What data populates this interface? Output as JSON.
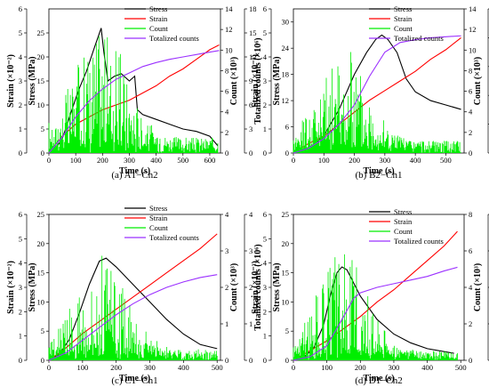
{
  "panels": [
    {
      "caption": "(a) A1−Ch2",
      "xlabel": "Time (s)",
      "y_labels": [
        "Strain (×10⁻²)",
        "Stress (MPa)",
        "Count (×10³)",
        "Totalized counts (×10⁶)"
      ],
      "x_ticks": [
        "0",
        "100",
        "200",
        "300",
        "400",
        "500",
        "600"
      ],
      "strain_ticks": [
        "0",
        "1",
        "2",
        "3",
        "4",
        "5",
        "6"
      ],
      "stress_ticks": [
        "0",
        "5",
        "10",
        "15",
        "20",
        "25"
      ],
      "count_ticks": [
        "0",
        "2",
        "4",
        "6",
        "8",
        "10",
        "12",
        "14"
      ],
      "total_ticks": [
        "0",
        "3",
        "6",
        "9",
        "12",
        "15",
        "18"
      ],
      "legend": [
        "Stress",
        "Strain",
        "Count",
        "Totalized counts"
      ]
    },
    {
      "caption": "(b) B2−Ch1",
      "xlabel": "Time (s)",
      "y_labels": [
        "Strain (×10⁻²)",
        "Stress (MPa)",
        "Count (×10³)",
        "Totalized counts (×10⁶)"
      ],
      "x_ticks": [
        "0",
        "100",
        "200",
        "300",
        "400",
        "500"
      ],
      "strain_ticks": [
        "0",
        "1",
        "2",
        "3",
        "4",
        "5",
        "6"
      ],
      "stress_ticks": [
        "0",
        "6",
        "12",
        "18",
        "24",
        "30"
      ],
      "count_ticks": [
        "0",
        "2",
        "4",
        "6",
        "8",
        "10",
        "12",
        "14"
      ],
      "total_ticks": [
        "0",
        "3",
        "6",
        "9",
        "12",
        "15"
      ],
      "legend": [
        "Stress",
        "Strain",
        "Count",
        "Totalized counts"
      ]
    },
    {
      "caption": "(c) C1−Ch1",
      "xlabel": "Time (s)",
      "y_labels": [
        "Strain (×10⁻²)",
        "Stress (MPa)",
        "Count (×10³)",
        "Totalized counts (×10⁶)"
      ],
      "x_ticks": [
        "0",
        "100",
        "200",
        "300",
        "400",
        "500"
      ],
      "strain_ticks": [
        "0",
        "1",
        "2",
        "3",
        "4",
        "5",
        "6"
      ],
      "stress_ticks": [
        "0",
        "5",
        "10",
        "15",
        "20",
        "25"
      ],
      "count_ticks": [
        "0",
        "1",
        "2",
        "3",
        "4"
      ],
      "total_ticks": [
        "0",
        "1",
        "2",
        "3",
        "4"
      ],
      "legend": [
        "Stress",
        "Strain",
        "Count",
        "Totalized counts"
      ]
    },
    {
      "caption": "(d) D1−Ch2",
      "xlabel": "Time (s)",
      "y_labels": [
        "Strain (×10⁻²)",
        "Stress (MPa)",
        "Count (×10³)",
        "Totalized counts (×10⁶)"
      ],
      "x_ticks": [
        "0",
        "100",
        "200",
        "300",
        "400",
        "500"
      ],
      "strain_ticks": [
        "0",
        "1",
        "2",
        "3",
        "4",
        "5",
        "6"
      ],
      "stress_ticks": [
        "0",
        "5",
        "10",
        "15",
        "20",
        "25"
      ],
      "count_ticks": [
        "0",
        "2",
        "4",
        "6",
        "8"
      ],
      "total_ticks": [
        "0",
        "1",
        "2",
        "3",
        "4"
      ],
      "legend": [
        "Stress",
        "Strain",
        "Count",
        "Totalized counts"
      ]
    }
  ],
  "colors": {
    "stress": "#000000",
    "strain": "#ff0000",
    "count": "#00ee00",
    "total": "#9b30ff"
  },
  "chart_data": [
    {
      "type": "line",
      "xlim": [
        0,
        640
      ],
      "strain_lim": [
        0,
        6
      ],
      "stress_lim": [
        0,
        30
      ],
      "count_lim": [
        0,
        14
      ],
      "total_lim": [
        0,
        18
      ],
      "series": [
        {
          "name": "Stress",
          "axis": "stress",
          "x": [
            0,
            20,
            50,
            80,
            110,
            140,
            170,
            195,
            205,
            220,
            245,
            270,
            300,
            320,
            330,
            350,
            400,
            450,
            500,
            550,
            600,
            630
          ],
          "y": [
            0,
            0.5,
            3,
            8,
            13,
            17,
            22,
            26,
            21,
            15,
            16,
            16.5,
            15,
            16,
            9,
            8,
            7,
            6,
            5,
            4.5,
            3.5,
            1.5
          ]
        },
        {
          "name": "Strain",
          "axis": "strain",
          "x": [
            0,
            50,
            100,
            150,
            200,
            250,
            300,
            350,
            400,
            450,
            500,
            550,
            600,
            635
          ],
          "y": [
            0,
            0.7,
            1.2,
            1.5,
            1.8,
            2.0,
            2.2,
            2.5,
            2.8,
            3.2,
            3.5,
            3.9,
            4.3,
            4.5
          ]
        },
        {
          "name": "Count",
          "axis": "count",
          "x": [
            0,
            630
          ],
          "peak": [
            0,
            12
          ],
          "base": 1.5
        },
        {
          "name": "Totalized counts",
          "axis": "total",
          "x": [
            0,
            50,
            100,
            150,
            200,
            250,
            300,
            350,
            400,
            450,
            500,
            550,
            600,
            635
          ],
          "y": [
            0,
            2,
            4.5,
            6.5,
            8,
            9.2,
            10,
            10.8,
            11.3,
            11.7,
            12,
            12.3,
            12.6,
            12.8
          ]
        }
      ]
    },
    {
      "type": "line",
      "xlim": [
        0,
        560
      ],
      "strain_lim": [
        0,
        6
      ],
      "stress_lim": [
        0,
        33
      ],
      "count_lim": [
        0,
        14
      ],
      "total_lim": [
        0,
        15
      ],
      "series": [
        {
          "name": "Stress",
          "axis": "stress",
          "x": [
            0,
            30,
            60,
            100,
            150,
            200,
            240,
            270,
            290,
            310,
            340,
            370,
            400,
            450,
            500,
            550
          ],
          "y": [
            0,
            0.5,
            1.5,
            4,
            10,
            18,
            23,
            26,
            27,
            26,
            23,
            17,
            14,
            12,
            11,
            10
          ]
        },
        {
          "name": "Strain",
          "axis": "strain",
          "x": [
            0,
            50,
            100,
            150,
            200,
            250,
            300,
            350,
            400,
            450,
            500,
            550
          ],
          "y": [
            0,
            0.4,
            0.7,
            1.2,
            1.7,
            2.2,
            2.6,
            3.0,
            3.4,
            3.9,
            4.3,
            4.8
          ]
        },
        {
          "name": "Count",
          "axis": "count",
          "x": [
            0,
            550
          ],
          "peak": [
            0,
            10
          ],
          "base": 1.2
        },
        {
          "name": "Totalized counts",
          "axis": "total",
          "x": [
            0,
            50,
            100,
            150,
            200,
            250,
            300,
            350,
            400,
            450,
            500,
            550
          ],
          "y": [
            0,
            0.5,
            1.5,
            3,
            5,
            8,
            10.5,
            11.5,
            11.8,
            12,
            12.1,
            12.2
          ]
        }
      ]
    },
    {
      "type": "line",
      "xlim": [
        0,
        510
      ],
      "strain_lim": [
        0,
        6
      ],
      "stress_lim": [
        0,
        25
      ],
      "count_lim": [
        0,
        4
      ],
      "total_lim": [
        0,
        4
      ],
      "series": [
        {
          "name": "Stress",
          "axis": "stress",
          "x": [
            0,
            30,
            60,
            90,
            120,
            150,
            170,
            200,
            250,
            300,
            350,
            400,
            450,
            500
          ],
          "y": [
            0,
            1,
            3.5,
            8,
            13,
            17,
            17.5,
            16,
            13,
            10,
            7,
            4.5,
            2.7,
            2
          ]
        },
        {
          "name": "Strain",
          "axis": "strain",
          "x": [
            0,
            50,
            100,
            150,
            200,
            250,
            300,
            350,
            400,
            450,
            500
          ],
          "y": [
            0,
            0.5,
            1.1,
            1.6,
            2.1,
            2.6,
            3.1,
            3.6,
            4.1,
            4.6,
            5.2
          ]
        },
        {
          "name": "Count",
          "axis": "count",
          "x": [
            0,
            500
          ],
          "peak": [
            0,
            2.7
          ],
          "base": 0.3
        },
        {
          "name": "Totalized counts",
          "axis": "total",
          "x": [
            0,
            50,
            100,
            150,
            200,
            250,
            300,
            350,
            400,
            450,
            500
          ],
          "y": [
            0,
            0.2,
            0.55,
            0.9,
            1.25,
            1.55,
            1.8,
            2.0,
            2.15,
            2.27,
            2.35
          ]
        }
      ]
    },
    {
      "type": "line",
      "xlim": [
        0,
        510
      ],
      "strain_lim": [
        0,
        6
      ],
      "stress_lim": [
        0,
        25
      ],
      "count_lim": [
        0,
        8
      ],
      "total_lim": [
        0,
        4
      ],
      "series": [
        {
          "name": "Stress",
          "axis": "stress",
          "x": [
            0,
            30,
            60,
            90,
            110,
            130,
            145,
            160,
            200,
            250,
            300,
            350,
            400,
            450,
            480
          ],
          "y": [
            0,
            0.5,
            2,
            6,
            11,
            15,
            16,
            15.5,
            11,
            7,
            4.5,
            3,
            2,
            1.5,
            1.2
          ]
        },
        {
          "name": "Strain",
          "axis": "strain",
          "x": [
            0,
            50,
            100,
            150,
            200,
            250,
            300,
            350,
            400,
            450,
            490
          ],
          "y": [
            0,
            0.4,
            0.8,
            1.3,
            1.8,
            2.4,
            2.9,
            3.5,
            4.1,
            4.7,
            5.3
          ]
        },
        {
          "name": "Count",
          "axis": "count",
          "x": [
            0,
            490
          ],
          "peak": [
            0,
            6
          ],
          "base": 0.5
        },
        {
          "name": "Totalized counts",
          "axis": "total",
          "x": [
            0,
            50,
            100,
            150,
            180,
            200,
            250,
            300,
            350,
            400,
            450,
            490
          ],
          "y": [
            0,
            0.1,
            0.4,
            1.2,
            1.7,
            1.85,
            2.0,
            2.1,
            2.2,
            2.3,
            2.45,
            2.55
          ]
        }
      ]
    }
  ]
}
